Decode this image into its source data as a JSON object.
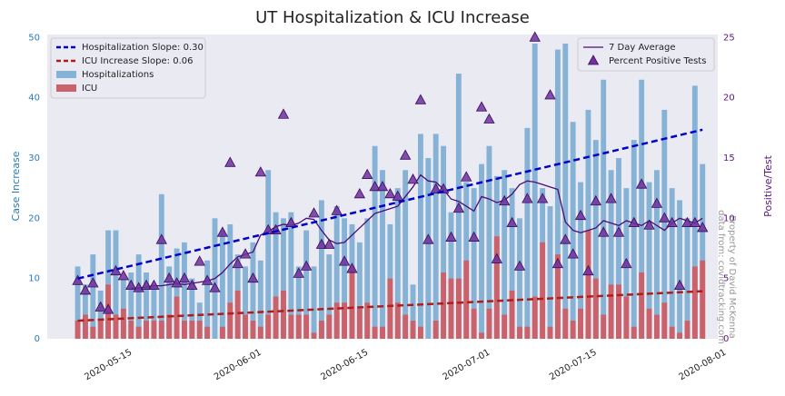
{
  "chart_data": {
    "type": "bar",
    "title": "UT Hospitalization & ICU Increase",
    "ylabel": "Case Increase",
    "y2label": "Positive/Test",
    "ylim": [
      0,
      50.5
    ],
    "yticks": [
      0,
      10,
      20,
      30,
      40,
      50
    ],
    "y2lim": [
      0,
      25.25
    ],
    "y2ticks": [
      0,
      5,
      10,
      15,
      20,
      25
    ],
    "xlim": [
      "2020-05-04",
      "2020-07-31"
    ],
    "xticks": [
      "2020-05-15",
      "2020-06-01",
      "2020-06-15",
      "2020-07-01",
      "2020-07-15",
      "2020-08-01"
    ],
    "grid": false,
    "legend_loc": "upper left",
    "legend2_loc": "upper right",
    "x": [
      "2020-05-08",
      "2020-05-09",
      "2020-05-10",
      "2020-05-11",
      "2020-05-12",
      "2020-05-13",
      "2020-05-14",
      "2020-05-15",
      "2020-05-16",
      "2020-05-17",
      "2020-05-18",
      "2020-05-19",
      "2020-05-20",
      "2020-05-21",
      "2020-05-22",
      "2020-05-23",
      "2020-05-24",
      "2020-05-25",
      "2020-05-26",
      "2020-05-27",
      "2020-05-28",
      "2020-05-29",
      "2020-05-30",
      "2020-05-31",
      "2020-06-01",
      "2020-06-02",
      "2020-06-03",
      "2020-06-04",
      "2020-06-05",
      "2020-06-06",
      "2020-06-07",
      "2020-06-08",
      "2020-06-09",
      "2020-06-10",
      "2020-06-11",
      "2020-06-12",
      "2020-06-13",
      "2020-06-14",
      "2020-06-15",
      "2020-06-16",
      "2020-06-17",
      "2020-06-18",
      "2020-06-19",
      "2020-06-20",
      "2020-06-21",
      "2020-06-22",
      "2020-06-23",
      "2020-06-24",
      "2020-06-25",
      "2020-06-26",
      "2020-06-27",
      "2020-06-28",
      "2020-06-29",
      "2020-06-30",
      "2020-07-01",
      "2020-07-02",
      "2020-07-03",
      "2020-07-04",
      "2020-07-05",
      "2020-07-06",
      "2020-07-07",
      "2020-07-08",
      "2020-07-09",
      "2020-07-10",
      "2020-07-11",
      "2020-07-12",
      "2020-07-13",
      "2020-07-14",
      "2020-07-15",
      "2020-07-16",
      "2020-07-17",
      "2020-07-18",
      "2020-07-19",
      "2020-07-20",
      "2020-07-21",
      "2020-07-22",
      "2020-07-23",
      "2020-07-24",
      "2020-07-25",
      "2020-07-26",
      "2020-07-27",
      "2020-07-28",
      "2020-07-29"
    ],
    "series": [
      {
        "name": "Hospitalizations",
        "type": "bar",
        "color": "#86b2d6",
        "values": [
          12,
          9,
          14,
          8,
          18,
          18,
          10,
          11,
          14,
          11,
          9,
          24,
          12,
          15,
          16,
          10,
          6,
          13,
          20,
          18,
          19,
          14,
          12,
          16,
          13,
          28,
          21,
          20,
          21,
          12,
          18,
          12,
          23,
          14,
          22,
          20,
          19,
          16,
          20,
          32,
          28,
          19,
          25,
          28,
          9,
          34,
          30,
          34,
          32,
          21,
          44,
          26,
          25,
          29,
          32,
          27,
          28,
          25,
          20,
          35,
          49,
          25,
          22,
          48,
          49,
          36,
          26,
          38,
          33,
          43,
          28,
          30,
          25,
          33,
          43,
          26,
          28,
          38,
          25,
          23,
          20,
          42,
          29
        ]
      },
      {
        "name": "ICU",
        "type": "bar",
        "color": "#c9626a",
        "values": [
          3,
          4,
          2,
          3,
          9,
          4,
          5,
          3,
          2,
          3,
          3,
          3,
          4,
          7,
          3,
          3,
          3,
          2,
          0,
          2,
          6,
          8,
          4,
          3,
          2,
          4,
          7,
          8,
          4,
          4,
          4,
          1,
          3,
          4,
          6,
          6,
          12,
          5,
          6,
          2,
          2,
          10,
          6,
          4,
          3,
          2,
          0,
          3,
          11,
          10,
          10,
          13,
          5,
          1,
          5,
          17,
          4,
          8,
          2,
          2,
          7,
          16,
          2,
          14,
          5,
          3,
          5,
          18,
          10,
          4,
          9,
          9,
          7,
          2,
          11,
          5,
          4,
          6,
          2,
          1,
          3,
          12,
          13
        ]
      },
      {
        "name": "7 Day Average",
        "type": "line",
        "axis": "y2",
        "color": "#4b0c78",
        "values": [
          null,
          null,
          null,
          null,
          null,
          null,
          null,
          4.2,
          4.2,
          4.3,
          4.4,
          4.4,
          4.5,
          4.6,
          4.5,
          4.6,
          4.7,
          4.8,
          5.0,
          5.5,
          6.2,
          6.8,
          7.0,
          7.2,
          8.6,
          8.9,
          9.3,
          9.5,
          9.4,
          9.6,
          10.0,
          9.9,
          9.0,
          8.2,
          7.9,
          8.0,
          8.6,
          9.2,
          9.8,
          10.4,
          10.6,
          10.8,
          11.0,
          11.8,
          12.6,
          13.6,
          13.1,
          13.0,
          12.4,
          11.6,
          11.4,
          11.0,
          10.6,
          11.8,
          11.6,
          11.3,
          11.5,
          12.0,
          12.8,
          13.1,
          13.0,
          12.8,
          12.6,
          12.4,
          9.7,
          9.0,
          8.8,
          9.0,
          9.2,
          9.8,
          9.6,
          9.4,
          9.8,
          9.6,
          9.4,
          9.8,
          9.4,
          9.0,
          9.6,
          10.0,
          9.8,
          9.6,
          10.0
        ]
      },
      {
        "name": "Percent Positive Tests",
        "type": "scatter",
        "axis": "y2",
        "color": "#7030a0",
        "values": [
          4.8,
          4.0,
          4.6,
          2.6,
          2.4,
          5.6,
          5.2,
          4.4,
          4.2,
          4.4,
          4.4,
          8.2,
          5.0,
          4.6,
          5.0,
          4.4,
          6.4,
          4.8,
          4.2,
          8.8,
          14.6,
          6.2,
          7.0,
          5.0,
          13.8,
          9.0,
          9.0,
          18.6,
          9.6,
          5.4,
          6.0,
          10.4,
          7.8,
          7.8,
          10.6,
          6.4,
          5.8,
          12.0,
          13.6,
          12.6,
          12.6,
          12.0,
          11.8,
          15.2,
          13.2,
          19.8,
          8.2,
          12.4,
          12.4,
          8.4,
          10.8,
          13.4,
          8.4,
          19.2,
          18.2,
          6.6,
          11.4,
          9.6,
          6.0,
          11.6,
          25.0,
          11.6,
          20.2,
          6.2,
          8.2,
          7.0,
          10.2,
          5.6,
          11.4,
          8.8,
          11.6,
          8.8,
          6.2,
          9.6,
          12.8,
          9.4,
          11.2,
          10.0,
          9.6,
          4.4,
          9.6,
          9.6,
          9.2
        ]
      }
    ],
    "trend_lines": [
      {
        "name": "Hospitalization Slope: 0.30",
        "color": "#0000c8",
        "x": [
          "2020-05-08",
          "2020-07-29"
        ],
        "values": [
          10.0,
          34.7
        ]
      },
      {
        "name": "ICU Increase Slope: 0.06",
        "color": "#b01c1c",
        "x": [
          "2020-05-08",
          "2020-07-29"
        ],
        "values": [
          3.0,
          7.9
        ]
      }
    ],
    "annotations": [
      "Property of David McKenna",
      "data from: covidtracking.com"
    ]
  }
}
